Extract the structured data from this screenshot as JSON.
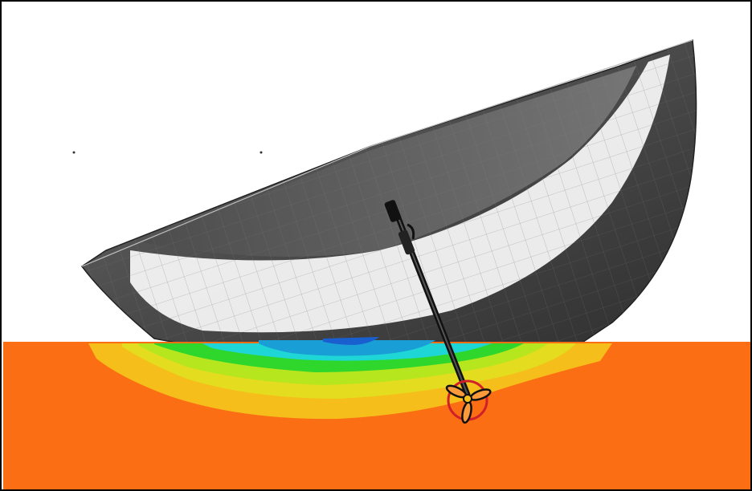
{
  "scene": {
    "colors": {
      "frame_border": "#000000",
      "background": "#ffffff",
      "ground": "#fb6e14",
      "hull_outer": "#3a3a3a",
      "hull_inner_shade": "#5a5a5a",
      "hull_rim_band": "#ffffff",
      "pressure_yellow": "#f6c21a",
      "pressure_lime": "#b6e61e",
      "pressure_green": "#2fd62c",
      "pressure_cyan": "#1fd6d6",
      "pressure_blue": "#1a6fd0",
      "shaft": "#111111",
      "propeller_ring": "#d0202a"
    },
    "icons": [
      "boat-hull-icon",
      "propeller-shaft-icon",
      "propeller-icon"
    ]
  }
}
